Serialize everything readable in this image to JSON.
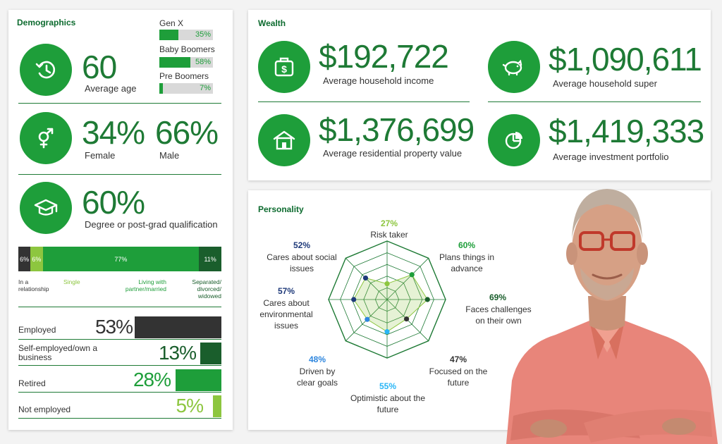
{
  "colors": {
    "dark_green": "#1e7a35",
    "green": "#1e9e3a",
    "lime": "#8dc63f",
    "charcoal": "#333333",
    "blue_dark": "#1f3a7a",
    "blue": "#2e86de",
    "cyan": "#29b6f6"
  },
  "demographics": {
    "title": "Demographics",
    "age": {
      "value": "60",
      "caption": "Average age",
      "icon": "clock-history-icon"
    },
    "generations": [
      {
        "label": "Gen X",
        "value": "35%",
        "fraction": 0.35
      },
      {
        "label": "Baby Boomers",
        "value": "58%",
        "fraction": 0.58
      },
      {
        "label": "Pre Boomers",
        "value": "7%",
        "fraction": 0.07
      }
    ],
    "gender": {
      "icon": "gender-icon",
      "female_value": "34%",
      "female_label": "Female",
      "male_value": "66%",
      "male_label": "Male"
    },
    "education": {
      "icon": "graduation-cap-icon",
      "value": "60%",
      "caption": "Degree or post-grad qualification"
    },
    "relationship": {
      "segments": [
        {
          "value": "6%",
          "fraction": 0.06,
          "color": "#333333"
        },
        {
          "value": "6%",
          "fraction": 0.06,
          "color": "#8dc63f"
        },
        {
          "value": "77%",
          "fraction": 0.77,
          "color": "#1e9e3a"
        },
        {
          "value": "11%",
          "fraction": 0.11,
          "color": "#1a5e2c"
        }
      ],
      "labels": {
        "in_relationship": "In a relationship",
        "single": "Single",
        "living": "Living with partner/married",
        "separated": "Separated/ divorced/ widowed"
      }
    },
    "employment": [
      {
        "label": "Employed",
        "value": "53%",
        "fraction": 0.53,
        "color": "#333333"
      },
      {
        "label": "Self-employed/own a business",
        "value": "13%",
        "fraction": 0.13,
        "color": "#1a5e2c"
      },
      {
        "label": "Retired",
        "value": "28%",
        "fraction": 0.28,
        "color": "#1e9e3a"
      },
      {
        "label": "Not employed",
        "value": "5%",
        "fraction": 0.05,
        "color": "#8dc63f"
      }
    ]
  },
  "wealth": {
    "title": "Wealth",
    "items": [
      {
        "value": "$192,722",
        "caption": "Average household income",
        "icon": "money-bag-icon"
      },
      {
        "value": "$1,090,611",
        "caption": "Average household super",
        "icon": "piggy-bank-icon"
      },
      {
        "value": "$1,376,699",
        "caption": "Average residential property value",
        "icon": "house-icon"
      },
      {
        "value": "$1,419,333",
        "caption": "Average investment portfolio",
        "icon": "pie-chart-icon"
      }
    ]
  },
  "personality": {
    "title": "Personality",
    "traits": [
      {
        "pct": "27%",
        "label": "Risk taker",
        "fraction": 0.27,
        "color": "#8dc63f"
      },
      {
        "pct": "60%",
        "label": "Plans things in advance",
        "fraction": 0.6,
        "color": "#1e9e3a"
      },
      {
        "pct": "69%",
        "label": "Faces challenges on their own",
        "fraction": 0.69,
        "color": "#1a5e2c"
      },
      {
        "pct": "47%",
        "label": "Focused on the future",
        "fraction": 0.47,
        "color": "#333333"
      },
      {
        "pct": "55%",
        "label": "Optimistic about the future",
        "fraction": 0.55,
        "color": "#29b6f6"
      },
      {
        "pct": "48%",
        "label": "Driven by clear goals",
        "fraction": 0.48,
        "color": "#2e86de"
      },
      {
        "pct": "57%",
        "label": "Cares about environmental issues",
        "fraction": 0.57,
        "color": "#1f3a7a"
      },
      {
        "pct": "52%",
        "label": "Cares about social issues",
        "fraction": 0.52,
        "color": "#1f3a7a"
      }
    ]
  }
}
